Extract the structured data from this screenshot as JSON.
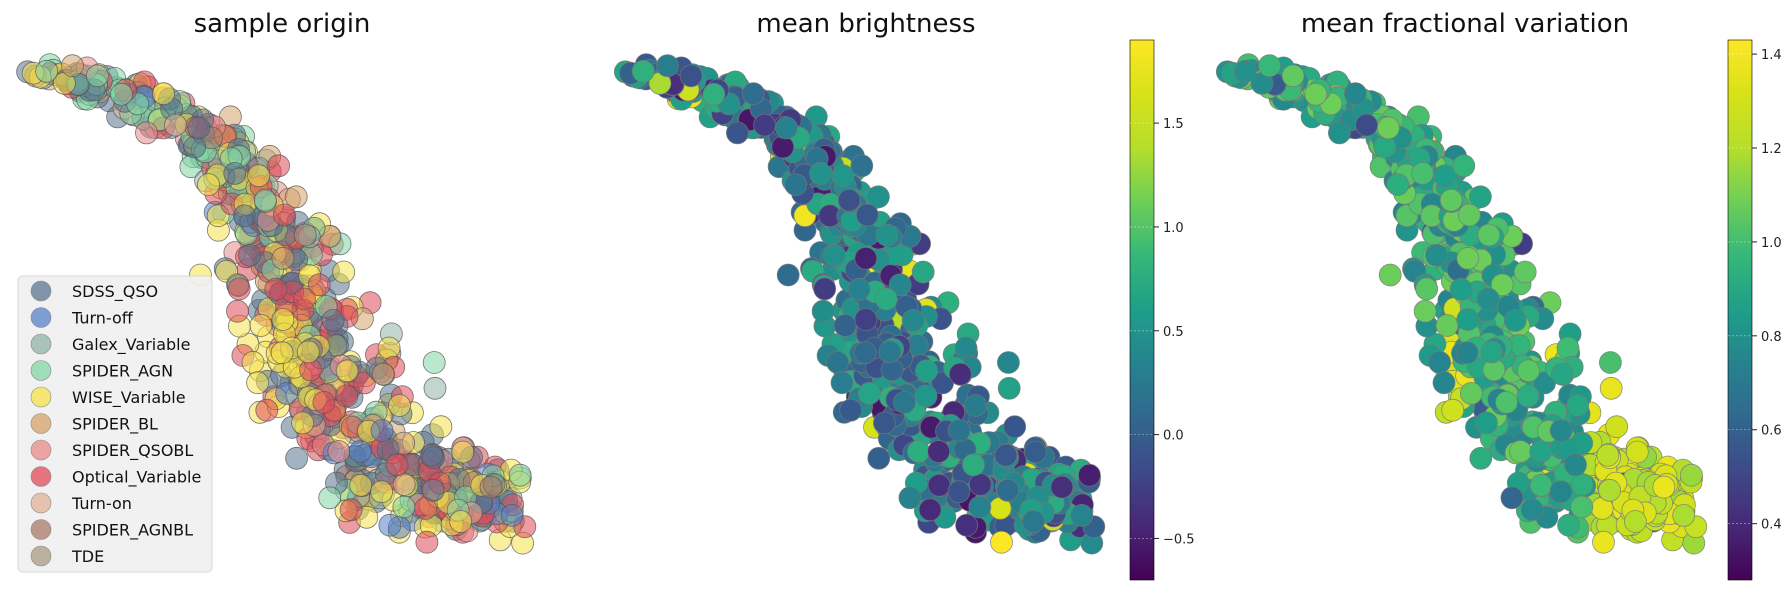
{
  "chart_data": [
    {
      "type": "scatter",
      "title": "sample origin",
      "legend_position": "lower-left",
      "grid": false,
      "axes_visible": false,
      "series": [
        {
          "name": "SDSS_QSO",
          "color": "#5a7590",
          "weight": 0.28
        },
        {
          "name": "Turn-off",
          "color": "#5580c8",
          "weight": 0.05
        },
        {
          "name": "Galex_Variable",
          "color": "#8fb3a6",
          "weight": 0.06
        },
        {
          "name": "SPIDER_AGN",
          "color": "#82d6a4",
          "weight": 0.1
        },
        {
          "name": "WISE_Variable",
          "color": "#f5e14a",
          "weight": 0.2
        },
        {
          "name": "SPIDER_BL",
          "color": "#d4a26a",
          "weight": 0.05
        },
        {
          "name": "SPIDER_QSOBL",
          "color": "#e88a8a",
          "weight": 0.05
        },
        {
          "name": "Optical_Variable",
          "color": "#e04a5a",
          "weight": 0.15
        },
        {
          "name": "Turn-on",
          "color": "#e0b296",
          "weight": 0.02
        },
        {
          "name": "SPIDER_AGNBL",
          "color": "#a97a6a",
          "weight": 0.02
        },
        {
          "name": "TDE",
          "color": "#a99a82",
          "weight": 0.02
        }
      ]
    },
    {
      "type": "scatter",
      "title": "mean brightness",
      "colormap": "viridis",
      "grid": false,
      "axes_visible": false,
      "colorbar": {
        "min": -0.7,
        "max": 1.9,
        "ticks": [
          -0.5,
          0.0,
          0.5,
          1.0,
          1.5
        ],
        "tick_labels": [
          "−0.5",
          "0.0",
          "0.5",
          "1.0",
          "1.5"
        ]
      }
    },
    {
      "type": "scatter",
      "title": "mean fractional variation",
      "colormap": "viridis",
      "grid": false,
      "axes_visible": false,
      "colorbar": {
        "min": 0.28,
        "max": 1.43,
        "ticks": [
          0.4,
          0.6,
          0.8,
          1.0,
          1.2,
          1.4
        ],
        "tick_labels": [
          "0.4",
          "0.6",
          "0.8",
          "1.0",
          "1.2",
          "1.4"
        ]
      }
    }
  ]
}
